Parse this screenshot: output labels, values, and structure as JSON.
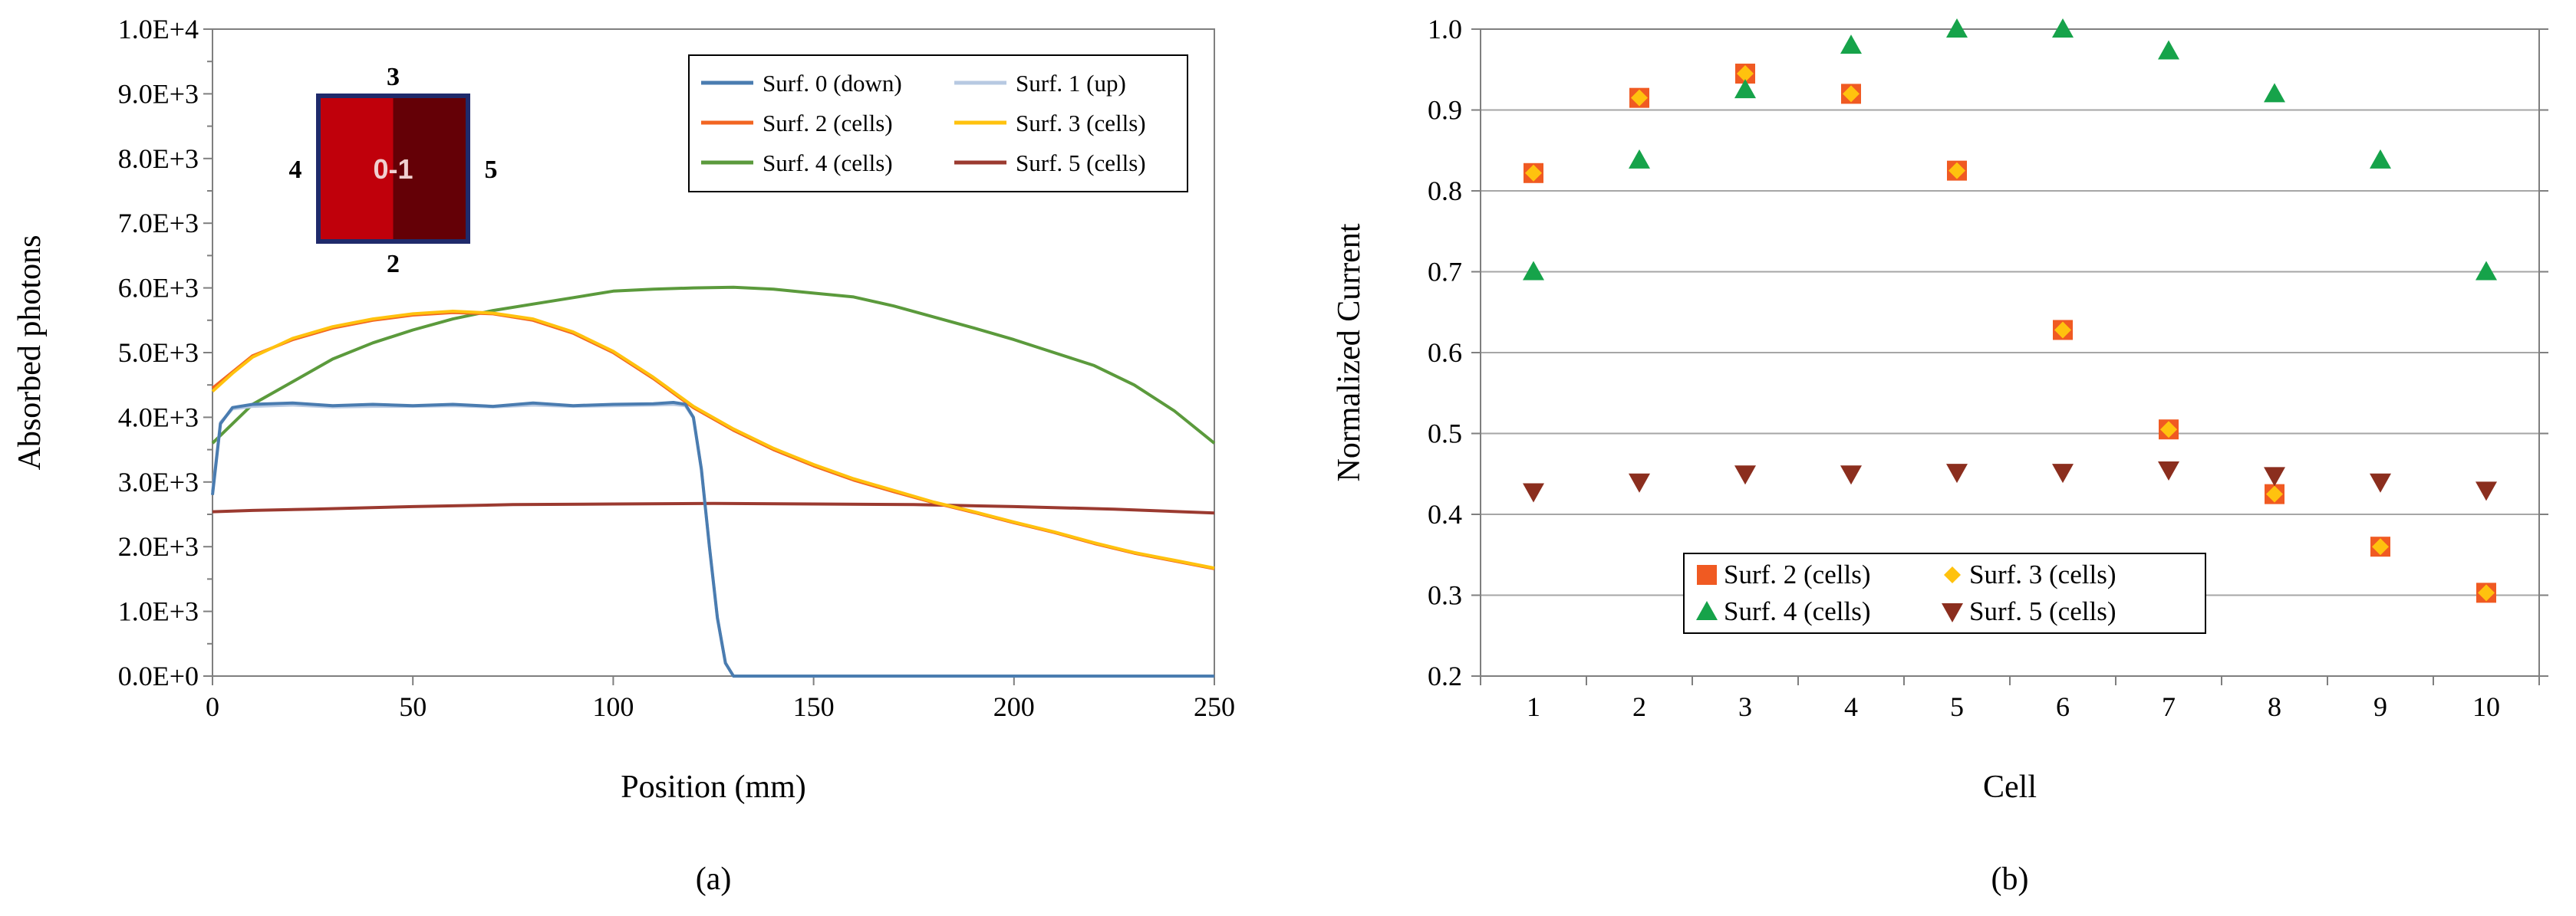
{
  "chart_data": [
    {
      "type": "line",
      "panel_label": "(a)",
      "xlabel": "Position (mm)",
      "ylabel": "Absorbed photons",
      "xlim": [
        0,
        250
      ],
      "ylim": [
        0,
        10000
      ],
      "x_ticks": [
        0,
        50,
        100,
        150,
        200,
        250
      ],
      "x_tick_labels": [
        "0",
        "50",
        "100",
        "150",
        "200",
        "250"
      ],
      "y_ticks": [
        0,
        1000,
        2000,
        3000,
        4000,
        5000,
        6000,
        7000,
        8000,
        9000,
        10000
      ],
      "y_tick_labels": [
        "0.0E+0",
        "1.0E+3",
        "2.0E+3",
        "3.0E+3",
        "4.0E+3",
        "5.0E+3",
        "6.0E+3",
        "7.0E+3",
        "8.0E+3",
        "9.0E+3",
        "1.0E+4"
      ],
      "grid": false,
      "legend_position": "top-right",
      "series": [
        {
          "name": "Surf. 0 (down)",
          "color": "#4a7cb0",
          "x": [
            0,
            2,
            5,
            10,
            20,
            30,
            40,
            50,
            60,
            70,
            80,
            90,
            100,
            110,
            115,
            118,
            120,
            122,
            124,
            126,
            128,
            130,
            140,
            160,
            180,
            200,
            220,
            250
          ],
          "y": [
            2800,
            3900,
            4150,
            4200,
            4220,
            4180,
            4200,
            4180,
            4200,
            4170,
            4220,
            4180,
            4200,
            4210,
            4230,
            4200,
            4000,
            3200,
            2000,
            900,
            200,
            0,
            0,
            0,
            0,
            0,
            0,
            0
          ]
        },
        {
          "name": "Surf. 1 (up)",
          "color": "#b7c9e2",
          "x": [
            0,
            2,
            5,
            10,
            20,
            30,
            40,
            50,
            60,
            70,
            80,
            90,
            100,
            110,
            115,
            118,
            120,
            122,
            124,
            126,
            128,
            130,
            140,
            160,
            180,
            200,
            220,
            250
          ],
          "y": [
            2850,
            3920,
            4130,
            4170,
            4190,
            4160,
            4170,
            4170,
            4180,
            4160,
            4190,
            4170,
            4180,
            4190,
            4200,
            4180,
            3990,
            3190,
            1990,
            890,
            200,
            0,
            0,
            0,
            0,
            0,
            0,
            0
          ]
        },
        {
          "name": "Surf. 2 (cells)",
          "color": "#f26522",
          "x": [
            0,
            5,
            10,
            20,
            30,
            40,
            50,
            60,
            70,
            80,
            90,
            100,
            110,
            120,
            130,
            140,
            150,
            160,
            170,
            180,
            190,
            200,
            210,
            220,
            230,
            240,
            250
          ],
          "y": [
            4450,
            4700,
            4950,
            5200,
            5380,
            5500,
            5580,
            5620,
            5600,
            5500,
            5300,
            5000,
            4600,
            4150,
            3800,
            3500,
            3250,
            3030,
            2850,
            2680,
            2530,
            2370,
            2220,
            2050,
            1900,
            1780,
            1660
          ]
        },
        {
          "name": "Surf. 3 (cells)",
          "color": "#ffc20e",
          "x": [
            0,
            5,
            10,
            20,
            30,
            40,
            50,
            60,
            70,
            80,
            90,
            100,
            110,
            120,
            130,
            140,
            150,
            160,
            170,
            180,
            190,
            200,
            210,
            220,
            230,
            240,
            250
          ],
          "y": [
            4400,
            4680,
            4930,
            5220,
            5400,
            5520,
            5600,
            5640,
            5610,
            5520,
            5320,
            5020,
            4620,
            4170,
            3820,
            3520,
            3270,
            3050,
            2870,
            2690,
            2540,
            2380,
            2230,
            2060,
            1910,
            1790,
            1670
          ]
        },
        {
          "name": "Surf. 4 (cells)",
          "color": "#5b9a3c",
          "x": [
            0,
            5,
            10,
            20,
            30,
            40,
            50,
            60,
            70,
            80,
            90,
            100,
            110,
            120,
            130,
            140,
            150,
            160,
            170,
            180,
            190,
            200,
            210,
            220,
            230,
            240,
            250
          ],
          "y": [
            3600,
            3900,
            4200,
            4550,
            4900,
            5150,
            5350,
            5520,
            5650,
            5750,
            5850,
            5950,
            5980,
            6000,
            6010,
            5980,
            5920,
            5860,
            5720,
            5550,
            5380,
            5200,
            5000,
            4800,
            4500,
            4100,
            3600
          ]
        },
        {
          "name": "Surf. 5 (cells)",
          "color": "#9b3a30",
          "x": [
            0,
            10,
            25,
            50,
            75,
            100,
            125,
            150,
            175,
            200,
            225,
            250
          ],
          "y": [
            2540,
            2560,
            2580,
            2620,
            2650,
            2660,
            2670,
            2660,
            2650,
            2620,
            2580,
            2520
          ]
        }
      ],
      "inset": {
        "labels": {
          "top": "3",
          "bottom": "2",
          "left": "4",
          "right": "5",
          "center": "0-1"
        },
        "left_color": "#c0000b",
        "right_color": "#640006",
        "border_color": "#1f2a6b"
      }
    },
    {
      "type": "scatter",
      "panel_label": "(b)",
      "xlabel": "Cell",
      "ylabel": "Normalized Current",
      "xlim": [
        0.5,
        10.5
      ],
      "ylim": [
        0.2,
        1.0
      ],
      "x_ticks": [
        1,
        2,
        3,
        4,
        5,
        6,
        7,
        8,
        9,
        10
      ],
      "x_tick_labels": [
        "1",
        "2",
        "3",
        "4",
        "5",
        "6",
        "7",
        "8",
        "9",
        "10"
      ],
      "y_ticks": [
        0.2,
        0.3,
        0.4,
        0.5,
        0.6,
        0.7,
        0.8,
        0.9,
        1.0
      ],
      "y_tick_labels": [
        "0.2",
        "0.3",
        "0.4",
        "0.5",
        "0.6",
        "0.7",
        "0.8",
        "0.9",
        "1.0"
      ],
      "grid": true,
      "legend_position": "bottom-left",
      "series": [
        {
          "name": "Surf. 2 (cells)",
          "marker": "square",
          "color": "#f05a22",
          "x": [
            1,
            2,
            3,
            4,
            5,
            6,
            7,
            8,
            9,
            10
          ],
          "y": [
            0.822,
            0.915,
            0.945,
            0.92,
            0.825,
            0.628,
            0.505,
            0.425,
            0.36,
            0.303
          ]
        },
        {
          "name": "Surf. 3 (cells)",
          "marker": "diamond",
          "color": "#ffc20e",
          "x": [
            1,
            2,
            3,
            4,
            5,
            6,
            7,
            8,
            9,
            10
          ],
          "y": [
            0.822,
            0.915,
            0.945,
            0.92,
            0.825,
            0.628,
            0.505,
            0.425,
            0.36,
            0.303
          ]
        },
        {
          "name": "Surf. 4 (cells)",
          "marker": "triangle-up",
          "color": "#16a34a",
          "x": [
            1,
            2,
            3,
            4,
            5,
            6,
            7,
            8,
            9,
            10
          ],
          "y": [
            0.7,
            0.838,
            0.925,
            0.98,
            1.0,
            1.0,
            0.973,
            0.92,
            0.838,
            0.7
          ]
        },
        {
          "name": "Surf. 5 (cells)",
          "marker": "triangle-down",
          "color": "#8b2e1e",
          "x": [
            1,
            2,
            3,
            4,
            5,
            6,
            7,
            8,
            9,
            10
          ],
          "y": [
            0.428,
            0.44,
            0.45,
            0.45,
            0.452,
            0.452,
            0.455,
            0.448,
            0.44,
            0.43
          ]
        }
      ]
    }
  ]
}
